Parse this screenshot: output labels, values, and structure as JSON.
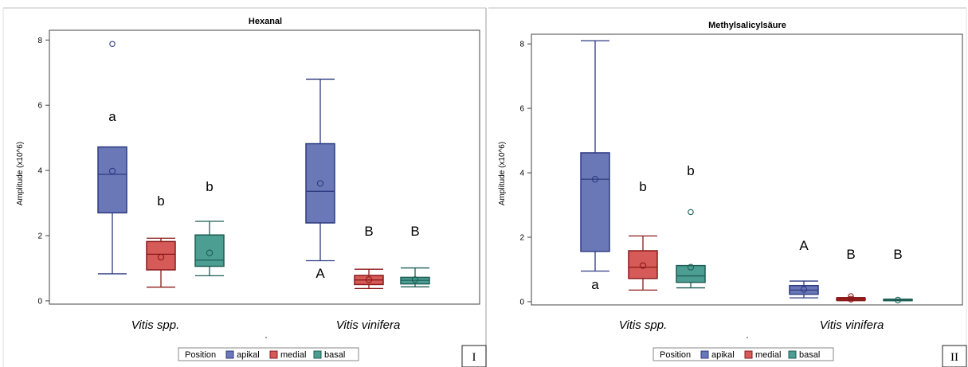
{
  "legend": {
    "title": "Position",
    "entries": [
      {
        "name": "apikal",
        "fill": "#6b78b8",
        "stroke": "#2d3a80"
      },
      {
        "name": "medial",
        "fill": "#d65a58",
        "stroke": "#8b1a1a"
      },
      {
        "name": "basal",
        "fill": "#4c9e93",
        "stroke": "#1d5e55"
      }
    ]
  },
  "chart_data": [
    {
      "type": "box",
      "title": "Hexanal",
      "ylabel": "Amplitude (x10^6)",
      "xlabel": "",
      "ylim": [
        -0.1,
        8.3
      ],
      "yticks": [
        0,
        2,
        4,
        6,
        8
      ],
      "panel_label": "I",
      "categories": [
        "Vitis spp.",
        "Vitis vinifera"
      ],
      "groups": [
        {
          "category": "Vitis spp.",
          "position": "apikal",
          "letter": "a",
          "whisker_low": 0.83,
          "q1": 2.7,
          "median": 3.88,
          "q3": 4.72,
          "whisker_high": 4.72,
          "mean": 3.98,
          "outliers": [
            7.88
          ]
        },
        {
          "category": "Vitis spp.",
          "position": "medial",
          "letter": "b",
          "whisker_low": 0.42,
          "q1": 0.95,
          "median": 1.43,
          "q3": 1.82,
          "whisker_high": 1.92,
          "mean": 1.34,
          "outliers": []
        },
        {
          "category": "Vitis spp.",
          "position": "basal",
          "letter": "b",
          "whisker_low": 0.77,
          "q1": 1.06,
          "median": 1.25,
          "q3": 2.02,
          "whisker_high": 2.44,
          "mean": 1.47,
          "outliers": []
        },
        {
          "category": "Vitis vinifera",
          "position": "apikal",
          "letter": "A",
          "whisker_low": 1.23,
          "q1": 2.39,
          "median": 3.36,
          "q3": 4.82,
          "whisker_high": 6.8,
          "mean": 3.6,
          "outliers": []
        },
        {
          "category": "Vitis vinifera",
          "position": "medial",
          "letter": "B",
          "whisker_low": 0.38,
          "q1": 0.5,
          "median": 0.64,
          "q3": 0.78,
          "whisker_high": 0.97,
          "mean": 0.65,
          "outliers": []
        },
        {
          "category": "Vitis vinifera",
          "position": "basal",
          "letter": "B",
          "whisker_low": 0.43,
          "q1": 0.52,
          "median": 0.63,
          "q3": 0.72,
          "whisker_high": 1.01,
          "mean": 0.65,
          "outliers": []
        }
      ]
    },
    {
      "type": "box",
      "title": "Methylsalicylsäure",
      "ylabel": "Amplitude (x10^6)",
      "xlabel": "",
      "ylim": [
        -0.1,
        8.3
      ],
      "yticks": [
        0,
        2,
        4,
        6,
        8
      ],
      "panel_label": "II",
      "categories": [
        "Vitis spp.",
        "Vitis vinifera"
      ],
      "groups": [
        {
          "category": "Vitis spp.",
          "position": "apikal",
          "letter": "a",
          "whisker_low": 0.95,
          "q1": 1.56,
          "median": 3.8,
          "q3": 4.62,
          "whisker_high": 8.1,
          "mean": 3.8,
          "outliers": []
        },
        {
          "category": "Vitis spp.",
          "position": "medial",
          "letter": "b",
          "whisker_low": 0.36,
          "q1": 0.72,
          "median": 1.07,
          "q3": 1.58,
          "whisker_high": 2.04,
          "mean": 1.12,
          "outliers": []
        },
        {
          "category": "Vitis spp.",
          "position": "basal",
          "letter": "b",
          "whisker_low": 0.43,
          "q1": 0.6,
          "median": 0.8,
          "q3": 1.12,
          "whisker_high": 1.12,
          "mean": 1.07,
          "outliers": [
            2.78
          ]
        },
        {
          "category": "Vitis vinifera",
          "position": "apikal",
          "letter": "A",
          "whisker_low": 0.12,
          "q1": 0.23,
          "median": 0.36,
          "q3": 0.5,
          "whisker_high": 0.64,
          "mean": 0.38,
          "outliers": []
        },
        {
          "category": "Vitis vinifera",
          "position": "medial",
          "letter": "B",
          "whisker_low": 0.03,
          "q1": 0.05,
          "median": 0.08,
          "q3": 0.11,
          "whisker_high": 0.13,
          "mean": 0.08,
          "outliers": [
            0.17
          ]
        },
        {
          "category": "Vitis vinifera",
          "position": "basal",
          "letter": "B",
          "whisker_low": 0.03,
          "q1": 0.04,
          "median": 0.06,
          "q3": 0.07,
          "whisker_high": 0.08,
          "mean": 0.05,
          "outliers": []
        }
      ]
    }
  ]
}
